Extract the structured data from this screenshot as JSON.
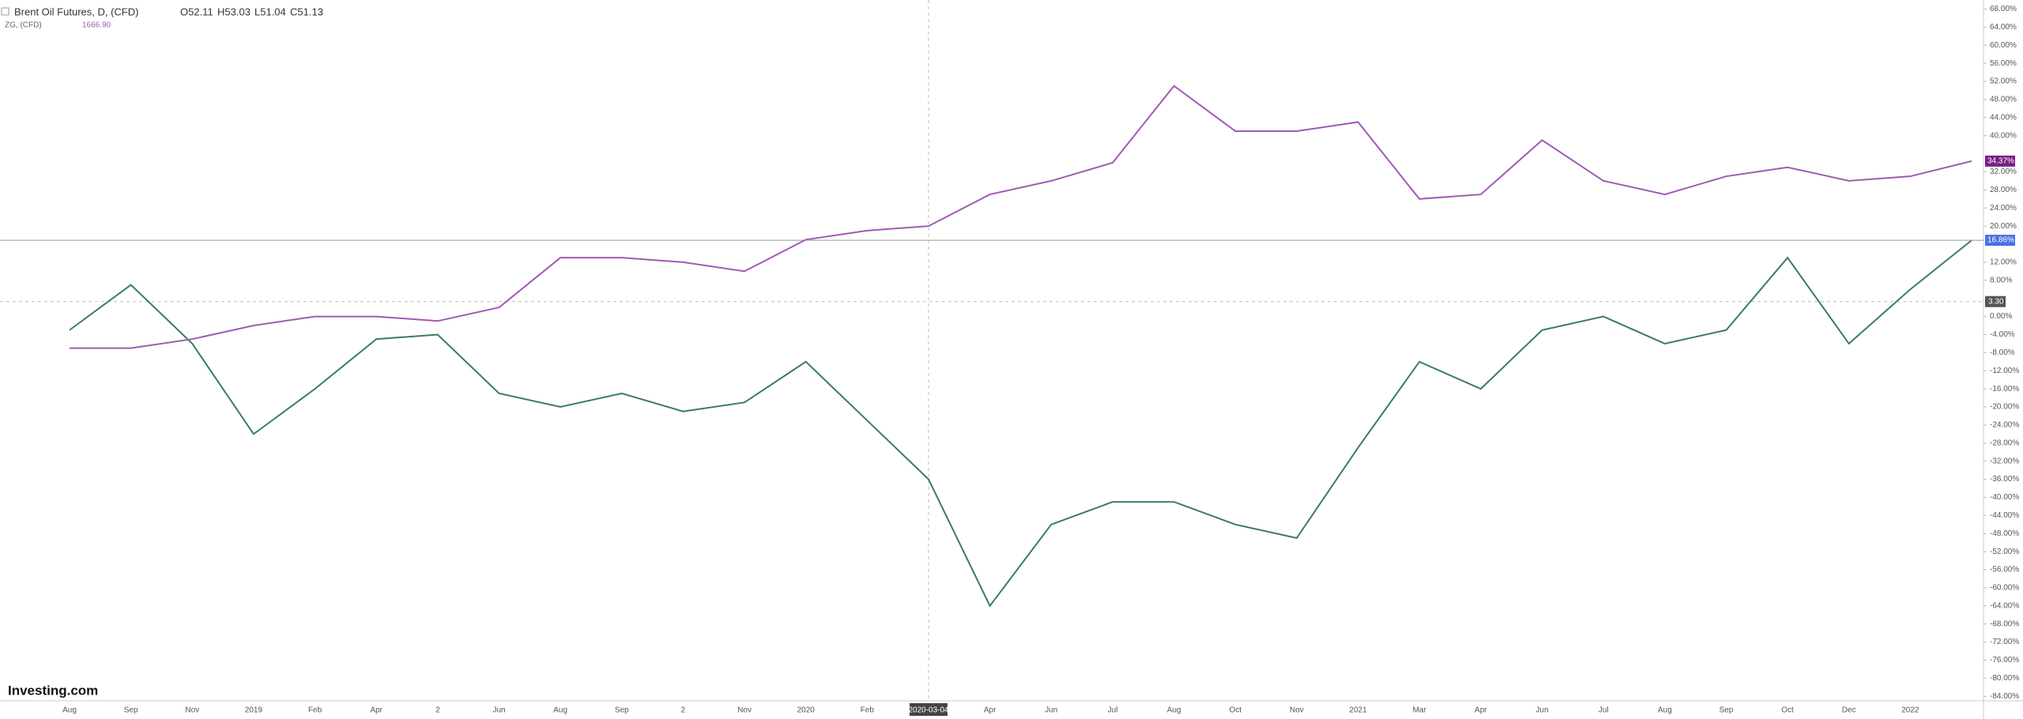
{
  "header": {
    "symbol": "Brent Oil Futures, D, (CFD)",
    "ohlc": [
      "O52.11",
      "H53.03",
      "L51.04",
      "C51.13"
    ],
    "compare_symbol": "ZG, (CFD)",
    "compare_value": "1666.90"
  },
  "logo": "Investing.com",
  "chart_data": {
    "type": "line",
    "categories": [
      "Aug",
      "Sep",
      "Nov",
      "2019",
      "Feb",
      "Apr",
      "2",
      "Jun",
      "Aug",
      "Sep",
      "2",
      "Nov",
      "2020",
      "Feb",
      "2020-03-04",
      "Apr",
      "Jun",
      "Jul",
      "Aug",
      "Oct",
      "Nov",
      "2021",
      "Mar",
      "Apr",
      "Jun",
      "Jul",
      "Aug",
      "Sep",
      "Oct",
      "Dec",
      "2022",
      null
    ],
    "highlight_category": 14,
    "series": [
      {
        "name": "Brent Oil Futures, D, (CFD)",
        "color": "#3a7d5c",
        "end_color": "#4a6fe3",
        "end_label": "16.86%",
        "values": [
          -3,
          7,
          -6,
          -26,
          -16,
          -5,
          -4,
          -17,
          -20,
          -17,
          -21,
          -19,
          -10,
          -23,
          -36,
          -64,
          -46,
          -41,
          -41,
          -46,
          -49,
          -29,
          -10,
          -16,
          -3,
          0,
          -6,
          -3,
          13,
          -6,
          6,
          16.86
        ]
      },
      {
        "name": "ZG, (CFD)",
        "color": "#a05ab4",
        "end_color": "#7b1f86",
        "end_label": "34.37%",
        "values": [
          -7,
          -7,
          -5,
          -2,
          0,
          0,
          -1,
          2,
          13,
          13,
          12,
          10,
          17,
          19,
          20,
          27,
          30,
          34,
          51,
          41,
          41,
          43,
          26,
          27,
          39,
          30,
          27,
          31,
          33,
          30,
          31,
          34.37
        ]
      }
    ],
    "crosshair": {
      "value": 3.3,
      "label": "3.30"
    },
    "ylim": [
      -85,
      70
    ],
    "yticks": [
      {
        "value": 68,
        "label": "68.00%"
      },
      {
        "value": 64,
        "label": "64.00%"
      },
      {
        "value": 60,
        "label": "60.00%"
      },
      {
        "value": 56,
        "label": "56.00%"
      },
      {
        "value": 52,
        "label": "52.00%"
      },
      {
        "value": 48,
        "label": "48.00%"
      },
      {
        "value": 44,
        "label": "44.00%"
      },
      {
        "value": 40,
        "label": "40.00%"
      },
      {
        "value": 32,
        "label": "32.00%"
      },
      {
        "value": 28,
        "label": "28.00%"
      },
      {
        "value": 24,
        "label": "24.00%"
      },
      {
        "value": 20,
        "label": "20.00%"
      },
      {
        "value": 12,
        "label": "12.00%"
      },
      {
        "value": 8,
        "label": "8.00%"
      },
      {
        "value": 0,
        "label": "0.00%"
      },
      {
        "value": -4,
        "label": "-4.00%"
      },
      {
        "value": -8,
        "label": "-8.00%"
      },
      {
        "value": -12,
        "label": "-12.00%"
      },
      {
        "value": -16,
        "label": "-16.00%"
      },
      {
        "value": -20,
        "label": "-20.00%"
      },
      {
        "value": -24,
        "label": "-24.00%"
      },
      {
        "value": -28,
        "label": "-28.00%"
      },
      {
        "value": -32,
        "label": "-32.00%"
      },
      {
        "value": -36,
        "label": "-36.00%"
      },
      {
        "value": -40,
        "label": "-40.00%"
      },
      {
        "value": -44,
        "label": "-44.00%"
      },
      {
        "value": -48,
        "label": "-48.00%"
      },
      {
        "value": -52,
        "label": "-52.00%"
      },
      {
        "value": -56,
        "label": "-56.00%"
      },
      {
        "value": -60,
        "label": "-60.00%"
      },
      {
        "value": -64,
        "label": "-64.00%"
      },
      {
        "value": -68,
        "label": "-68.00%"
      },
      {
        "value": -72,
        "label": "-72.00%"
      },
      {
        "value": -76,
        "label": "-76.00%"
      },
      {
        "value": -80,
        "label": "-80.00%"
      },
      {
        "value": -84,
        "label": "-84.00%"
      }
    ],
    "grid": false
  }
}
